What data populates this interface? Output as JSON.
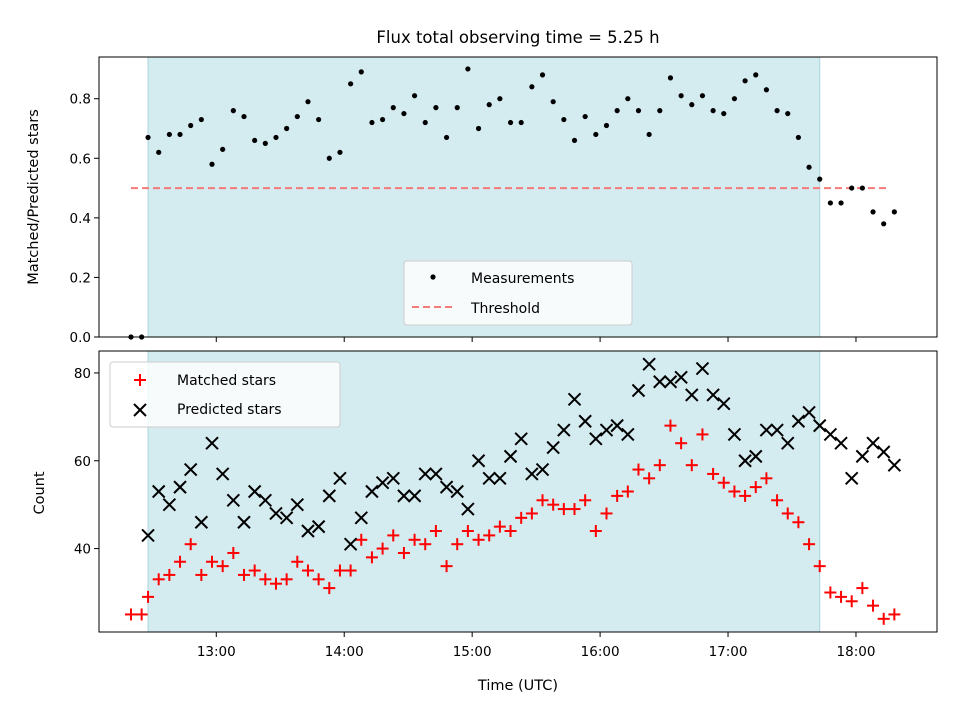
{
  "chart_data": [
    {
      "type": "scatter",
      "title": "Flux total observing time = 5.25 h",
      "xlabel": "",
      "ylabel": "Matched/Predicted stars",
      "ylim": [
        0,
        0.94
      ],
      "yticks": [
        "0.0",
        "0.2",
        "0.4",
        "0.6",
        "0.8"
      ],
      "ytick_values": [
        0,
        0.2,
        0.4,
        0.6,
        0.8
      ],
      "grid": false,
      "legend_position": "lower-center",
      "shaded_interval": {
        "start": "12:28",
        "end": "17:43",
        "color": "#d4ebf0"
      },
      "threshold": {
        "name": "Threshold",
        "value": 0.5,
        "x_start": "12:20",
        "x_end": "18:15",
        "color": "#f47a7a"
      },
      "series": [
        {
          "name": "Measurements",
          "color": "#000000",
          "x": [
            "12:20",
            "12:25",
            "12:28",
            "12:33",
            "12:38",
            "12:43",
            "12:48",
            "12:53",
            "12:58",
            "13:03",
            "13:08",
            "13:13",
            "13:18",
            "13:23",
            "13:28",
            "13:33",
            "13:38",
            "13:43",
            "13:48",
            "13:53",
            "13:58",
            "14:03",
            "14:08",
            "14:13",
            "14:18",
            "14:23",
            "14:28",
            "14:33",
            "14:38",
            "14:43",
            "14:48",
            "14:53",
            "14:58",
            "15:03",
            "15:08",
            "15:13",
            "15:18",
            "15:23",
            "15:28",
            "15:33",
            "15:38",
            "15:43",
            "15:48",
            "15:53",
            "15:58",
            "16:03",
            "16:08",
            "16:13",
            "16:18",
            "16:23",
            "16:28",
            "16:33",
            "16:38",
            "16:43",
            "16:48",
            "16:53",
            "16:58",
            "17:03",
            "17:08",
            "17:13",
            "17:18",
            "17:23",
            "17:28",
            "17:33",
            "17:38",
            "17:43",
            "17:48",
            "17:53",
            "17:58",
            "18:03",
            "18:08",
            "18:13",
            "18:18"
          ],
          "y": [
            0.0,
            0.0,
            0.67,
            0.62,
            0.68,
            0.68,
            0.71,
            0.73,
            0.58,
            0.63,
            0.76,
            0.74,
            0.66,
            0.65,
            0.67,
            0.7,
            0.74,
            0.79,
            0.73,
            0.6,
            0.62,
            0.85,
            0.89,
            0.72,
            0.73,
            0.77,
            0.75,
            0.81,
            0.72,
            0.77,
            0.67,
            0.77,
            0.9,
            0.7,
            0.78,
            0.8,
            0.72,
            0.72,
            0.84,
            0.88,
            0.79,
            0.73,
            0.66,
            0.74,
            0.68,
            0.71,
            0.76,
            0.8,
            0.76,
            0.68,
            0.76,
            0.87,
            0.81,
            0.78,
            0.81,
            0.76,
            0.75,
            0.8,
            0.86,
            0.88,
            0.83,
            0.76,
            0.75,
            0.67,
            0.57,
            0.53,
            0.45,
            0.45,
            0.5,
            0.5,
            0.42,
            0.38,
            0.42
          ]
        }
      ]
    },
    {
      "type": "scatter",
      "title": "",
      "xlabel": "Time (UTC)",
      "ylabel": "Count",
      "ylim": [
        21,
        85
      ],
      "yticks": [
        "40",
        "60",
        "80"
      ],
      "ytick_values": [
        40,
        60,
        80
      ],
      "xticks": [
        "13:00",
        "14:00",
        "15:00",
        "16:00",
        "17:00",
        "18:00"
      ],
      "grid": false,
      "legend_position": "upper-left",
      "shaded_interval": {
        "start": "12:28",
        "end": "17:43",
        "color": "#d4ebf0"
      },
      "x": [
        "12:20",
        "12:25",
        "12:28",
        "12:33",
        "12:38",
        "12:43",
        "12:48",
        "12:53",
        "12:58",
        "13:03",
        "13:08",
        "13:13",
        "13:18",
        "13:23",
        "13:28",
        "13:33",
        "13:38",
        "13:43",
        "13:48",
        "13:53",
        "13:58",
        "14:03",
        "14:08",
        "14:13",
        "14:18",
        "14:23",
        "14:28",
        "14:33",
        "14:38",
        "14:43",
        "14:48",
        "14:53",
        "14:58",
        "15:03",
        "15:08",
        "15:13",
        "15:18",
        "15:23",
        "15:28",
        "15:33",
        "15:38",
        "15:43",
        "15:48",
        "15:53",
        "15:58",
        "16:03",
        "16:08",
        "16:13",
        "16:18",
        "16:23",
        "16:28",
        "16:33",
        "16:38",
        "16:43",
        "16:48",
        "16:53",
        "16:58",
        "17:03",
        "17:08",
        "17:13",
        "17:18",
        "17:23",
        "17:28",
        "17:33",
        "17:38",
        "17:43",
        "17:48",
        "17:53",
        "17:58",
        "18:03",
        "18:08",
        "18:13",
        "18:18"
      ],
      "series": [
        {
          "name": "Matched stars",
          "marker": "plus",
          "color": "#ff0000",
          "values": [
            25,
            25,
            29,
            33,
            34,
            37,
            41,
            34,
            37,
            36,
            39,
            34,
            35,
            33,
            32,
            33,
            37,
            35,
            33,
            31,
            35,
            35,
            42,
            38,
            40,
            43,
            39,
            42,
            41,
            44,
            36,
            41,
            44,
            42,
            43,
            45,
            44,
            47,
            48,
            51,
            50,
            49,
            49,
            51,
            44,
            48,
            52,
            53,
            58,
            56,
            59,
            68,
            64,
            59,
            66,
            57,
            55,
            53,
            52,
            54,
            56,
            51,
            48,
            46,
            41,
            36,
            30,
            29,
            28,
            31,
            27,
            24,
            25
          ]
        },
        {
          "name": "Predicted stars",
          "marker": "x",
          "color": "#000000",
          "values": [
            null,
            null,
            43,
            53,
            50,
            54,
            58,
            46,
            64,
            57,
            51,
            46,
            53,
            51,
            48,
            47,
            50,
            44,
            45,
            52,
            56,
            41,
            47,
            53,
            55,
            56,
            52,
            52,
            57,
            57,
            54,
            53,
            49,
            60,
            56,
            56,
            61,
            65,
            57,
            58,
            63,
            67,
            74,
            69,
            65,
            67,
            68,
            66,
            76,
            82,
            78,
            78,
            79,
            75,
            81,
            75,
            73,
            66,
            60,
            61,
            67,
            67,
            64,
            69,
            71,
            68,
            66,
            64,
            56,
            61,
            64,
            62,
            59
          ]
        }
      ]
    }
  ]
}
